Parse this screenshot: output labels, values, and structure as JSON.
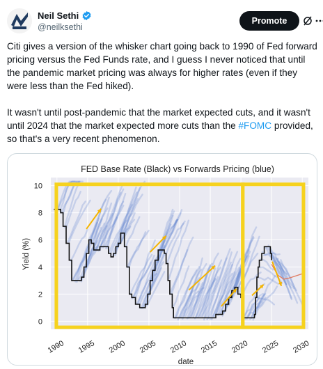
{
  "author": {
    "display_name": "Neil Sethi",
    "handle": "@neilksethi",
    "verified": true,
    "avatar_icon": "avatar-logo-icon"
  },
  "actions": {
    "promote_label": "Promote",
    "grok_icon": "grok-icon",
    "more_icon": "more-icon"
  },
  "tweet": {
    "paragraph_1": "Citi gives a version of the whisker chart going back to 1990 of Fed forward pricing versus the Fed Funds rate, and I guess I never noticed that until the pandemic market pricing was always for higher rates (even if they were less than the Fed hiked).",
    "paragraph_2_before": "It wasn't until post-pandemic that the market expected cuts, and it wasn't until 2024 that the market expected more cuts than the ",
    "hashtag": "#FOMC",
    "paragraph_2_after": " provided, so that's a very recent phenomenon."
  },
  "chart_data": {
    "type": "line",
    "title": "FED Base Rate (Black) vs Forwards Pricing (blue)",
    "xlabel": "date",
    "ylabel": "Yield (%)",
    "x_ticks": [
      "1990",
      "1995",
      "2000",
      "2005",
      "2010",
      "2015",
      "2020",
      "2025",
      "2030"
    ],
    "y_ticks": [
      "0",
      "2",
      "4",
      "6",
      "8",
      "10"
    ],
    "xlim": [
      1989,
      2031
    ],
    "ylim": [
      -0.6,
      10.6
    ],
    "grid": true,
    "series": [
      {
        "color": "#111111",
        "x": [
          1989.5,
          1990.2,
          1990.6,
          1991.0,
          1991.5,
          1992.0,
          1992.4,
          1993.5,
          1994.0,
          1994.4,
          1994.8,
          1995.2,
          1995.6,
          1996.0,
          1997.0,
          1998.0,
          1998.4,
          1998.8,
          1999.2,
          1999.6,
          2000.0,
          2000.4,
          2000.8,
          2001.0,
          2001.4,
          2001.8,
          2002.2,
          2002.8,
          2003.5,
          2004.4,
          2004.8,
          2005.2,
          2005.6,
          2006.0,
          2006.5,
          2007.5,
          2007.8,
          2008.1,
          2008.4,
          2008.8,
          2009.0,
          2010.0,
          2012.0,
          2014.0,
          2015.9,
          2016.5,
          2017.0,
          2017.5,
          2018.0,
          2018.5,
          2019.0,
          2019.5,
          2020.0,
          2020.2,
          2021.0,
          2022.0,
          2022.2,
          2022.4,
          2022.6,
          2022.8,
          2023.0,
          2023.4,
          2023.8,
          2024.6,
          2024.8,
          2025.0
        ],
        "values": [
          8.25,
          8.25,
          8.0,
          7.0,
          5.75,
          4.5,
          3.0,
          3.0,
          3.25,
          4.0,
          5.0,
          6.0,
          5.75,
          5.25,
          5.5,
          5.5,
          5.0,
          4.75,
          5.0,
          5.5,
          5.75,
          6.5,
          6.5,
          5.5,
          4.0,
          2.0,
          1.75,
          1.25,
          1.0,
          1.25,
          2.0,
          3.0,
          3.75,
          4.5,
          5.25,
          5.0,
          4.25,
          3.0,
          2.0,
          1.0,
          0.25,
          0.25,
          0.25,
          0.25,
          0.5,
          0.5,
          0.75,
          1.25,
          1.75,
          2.25,
          2.5,
          2.0,
          1.75,
          0.25,
          0.25,
          0.25,
          0.5,
          1.75,
          3.25,
          4.0,
          4.5,
          5.0,
          5.5,
          5.5,
          5.0,
          4.5
        ]
      },
      {
        "color": "#e07a5f",
        "x": [
          2025.0,
          2026.0,
          2027.0,
          2028.0,
          2029.0,
          2030.0
        ],
        "values": [
          4.2,
          3.4,
          3.1,
          3.2,
          3.35,
          3.5
        ]
      }
    ],
    "forward_whiskers_color": "#4a74c9",
    "arrow_color": "#f4b400",
    "frame_color": "#f6d21e",
    "background": "#eaeaf2"
  }
}
